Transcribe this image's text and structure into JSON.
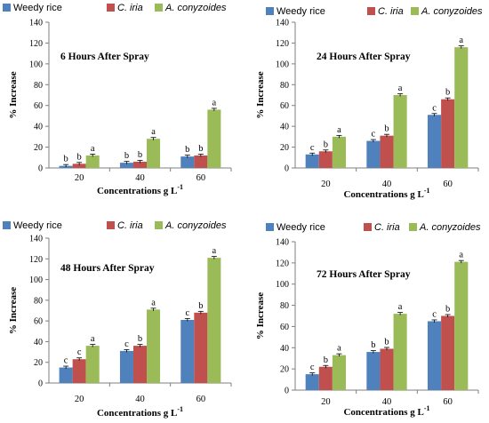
{
  "figure": {
    "legend_style": "top",
    "grid": false
  },
  "chart_data": [
    {
      "type": "bar",
      "title": "6 Hours After Spray",
      "xlabel": "Concentrations g L",
      "xlabel_superscript": "-1",
      "ylabel": "% Increase",
      "ylim": [
        0,
        140
      ],
      "yticks": [
        0,
        20,
        40,
        60,
        80,
        100,
        120,
        140
      ],
      "categories": [
        "20",
        "40",
        "60"
      ],
      "series": [
        {
          "name": "Weedy rice",
          "color": "#4f81bd",
          "values": [
            2,
            5,
            11
          ],
          "labels": [
            "b",
            "b",
            "b"
          ]
        },
        {
          "name": "C. iria",
          "color": "#c0504d",
          "values": [
            4,
            6,
            12
          ],
          "labels": [
            "b",
            "b",
            "b"
          ]
        },
        {
          "name": "A. conyzoides",
          "color": "#9bbb59",
          "values": [
            12,
            28,
            56
          ],
          "labels": [
            "a",
            "a",
            "a"
          ]
        }
      ]
    },
    {
      "type": "bar",
      "title": "24 Hours After Spray",
      "xlabel": "Concentrations g L",
      "xlabel_superscript": "-1",
      "ylabel": "% Increase",
      "ylim": [
        0,
        140
      ],
      "yticks": [
        0,
        20,
        40,
        60,
        80,
        100,
        120,
        140
      ],
      "categories": [
        "20",
        "40",
        "60"
      ],
      "series": [
        {
          "name": "Weedy rice",
          "color": "#4f81bd",
          "values": [
            13,
            26,
            51
          ],
          "labels": [
            "c",
            "c",
            "c"
          ]
        },
        {
          "name": "C. iria",
          "color": "#c0504d",
          "values": [
            16,
            31,
            66
          ],
          "labels": [
            "b",
            "b",
            "b"
          ]
        },
        {
          "name": "A. conyzoides",
          "color": "#9bbb59",
          "values": [
            30,
            70,
            116
          ],
          "labels": [
            "a",
            "a",
            "a"
          ]
        }
      ]
    },
    {
      "type": "bar",
      "title": "48 Hours After Spray",
      "xlabel": "Concentrations g L",
      "xlabel_superscript": "-1",
      "ylabel": "% Increase",
      "ylim": [
        0,
        140
      ],
      "yticks": [
        0,
        20,
        40,
        60,
        80,
        100,
        120,
        140
      ],
      "categories": [
        "20",
        "40",
        "60"
      ],
      "series": [
        {
          "name": "Weedy rice",
          "color": "#4f81bd",
          "values": [
            15,
            31,
            61
          ],
          "labels": [
            "c",
            "c",
            "c"
          ]
        },
        {
          "name": "C. iria",
          "color": "#c0504d",
          "values": [
            23,
            36,
            68
          ],
          "labels": [
            "c",
            "b",
            "b"
          ]
        },
        {
          "name": "A. conyzoides",
          "color": "#9bbb59",
          "values": [
            36,
            71,
            121
          ],
          "labels": [
            "a",
            "a",
            "a"
          ]
        }
      ]
    },
    {
      "type": "bar",
      "title": "72 Hours After Spray",
      "xlabel": "Concentrations g L",
      "xlabel_superscript": "-1",
      "ylabel": "% Increase",
      "ylim": [
        0,
        140
      ],
      "yticks": [
        0,
        20,
        40,
        60,
        80,
        100,
        120,
        140
      ],
      "categories": [
        "20",
        "40",
        "60"
      ],
      "series": [
        {
          "name": "Weedy rice",
          "color": "#4f81bd",
          "values": [
            15,
            36,
            65
          ],
          "labels": [
            "c",
            "b",
            "c"
          ]
        },
        {
          "name": "C. iria",
          "color": "#c0504d",
          "values": [
            22,
            39,
            70
          ],
          "labels": [
            "b",
            "b",
            "b"
          ]
        },
        {
          "name": "A. conyzoides",
          "color": "#9bbb59",
          "values": [
            33,
            72,
            121
          ],
          "labels": [
            "a",
            "a",
            "a"
          ]
        }
      ]
    }
  ]
}
